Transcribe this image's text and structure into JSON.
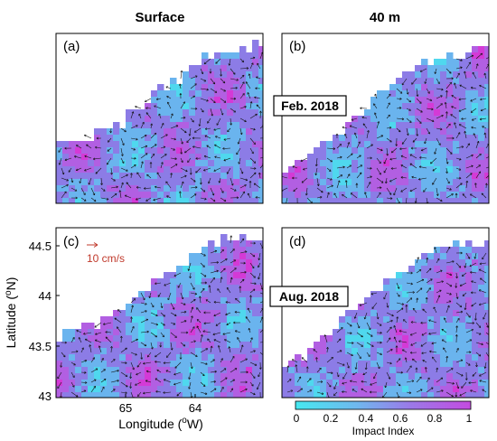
{
  "columns": [
    "Surface",
    "40 m"
  ],
  "panels": [
    {
      "label": "(a)",
      "col": 0,
      "row": 0
    },
    {
      "label": "(b)",
      "col": 1,
      "row": 0
    },
    {
      "label": "(c)",
      "col": 0,
      "row": 1
    },
    {
      "label": "(d)",
      "col": 1,
      "row": 1
    }
  ],
  "dates": [
    "Feb. 2018",
    "Aug. 2018"
  ],
  "scale_arrow": {
    "label": "10 cm/s",
    "color": "#c0392b"
  },
  "axes": {
    "xlabel_prefix": "Longitude (",
    "xlabel_sup": "o",
    "xlabel_suffix": "W)",
    "ylabel_prefix": "Latitude (",
    "ylabel_sup": "o",
    "ylabel_suffix": "N)",
    "xticks": [
      "65",
      "64"
    ],
    "yticks": [
      "44.5",
      "44",
      "43.5",
      "43"
    ]
  },
  "colorbar": {
    "label": "Impact Index",
    "ticks": [
      "0",
      "0.2",
      "0.4",
      "0.6",
      "0.8",
      "1"
    ],
    "colors": [
      "#4fe4f0",
      "#7da4ee",
      "#a06fe8",
      "#c84ce0"
    ]
  },
  "map_colors": {
    "low": "#4fd8ee",
    "mid": "#8c7ce6",
    "high": "#d43ad6",
    "arrow": "#111111"
  }
}
